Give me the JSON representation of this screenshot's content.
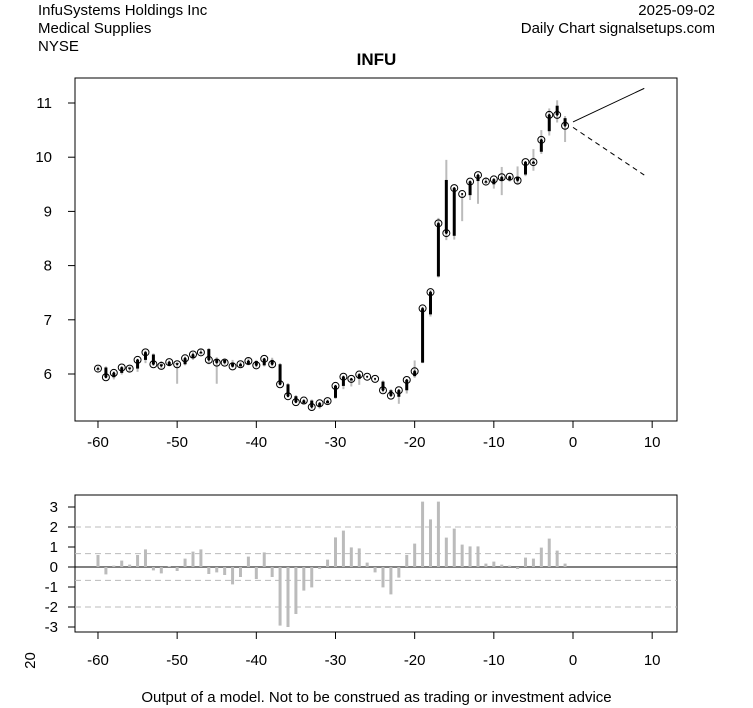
{
  "header": {
    "company": "InfuSystems Holdings Inc",
    "sector": "Medical Supplies",
    "exchange": "NYSE",
    "date": "2025-09-02",
    "source": "Daily Chart signalsetups.com"
  },
  "footer": {
    "disclaimer": "Output of a model. Not to be construed as trading or investment advice",
    "side_label": "20"
  },
  "chart_data": [
    {
      "type": "candlestick",
      "title": "INFU",
      "xlim": [
        -63,
        13
      ],
      "ylim": [
        5.2,
        11.6
      ],
      "xticks": [
        -60,
        -50,
        -40,
        -30,
        -20,
        -10,
        0,
        10
      ],
      "yticks": [
        6,
        7,
        8,
        9,
        10,
        11
      ],
      "columns": [
        "x",
        "open",
        "high",
        "low",
        "close"
      ],
      "candles": [
        [
          -60,
          6.08,
          6.14,
          6.05,
          6.1
        ],
        [
          -59,
          6.12,
          6.14,
          5.92,
          5.94
        ],
        [
          -58,
          5.94,
          6.05,
          5.9,
          6.02
        ],
        [
          -57,
          6.02,
          6.14,
          5.99,
          6.12
        ],
        [
          -56,
          6.12,
          6.14,
          6.03,
          6.1
        ],
        [
          -55,
          6.1,
          6.28,
          6.04,
          6.26
        ],
        [
          -54,
          6.26,
          6.43,
          6.2,
          6.4
        ],
        [
          -53,
          6.36,
          6.38,
          6.15,
          6.18
        ],
        [
          -52,
          6.18,
          6.24,
          6.1,
          6.15
        ],
        [
          -51,
          6.15,
          6.25,
          6.14,
          6.22
        ],
        [
          -50,
          6.2,
          6.22,
          5.82,
          6.18
        ],
        [
          -49,
          6.18,
          6.32,
          6.16,
          6.29
        ],
        [
          -48,
          6.29,
          6.4,
          6.26,
          6.36
        ],
        [
          -47,
          6.38,
          6.47,
          6.36,
          6.4
        ],
        [
          -46,
          6.46,
          6.48,
          6.18,
          6.26
        ],
        [
          -45,
          6.28,
          6.31,
          5.82,
          6.21
        ],
        [
          -44,
          6.26,
          6.29,
          6.17,
          6.21
        ],
        [
          -43,
          6.21,
          6.26,
          6.12,
          6.14
        ],
        [
          -42,
          6.14,
          6.22,
          6.12,
          6.18
        ],
        [
          -41,
          6.18,
          6.3,
          6.16,
          6.24
        ],
        [
          -40,
          6.24,
          6.26,
          6.12,
          6.16
        ],
        [
          -39,
          6.16,
          6.3,
          6.14,
          6.28
        ],
        [
          -38,
          6.26,
          6.3,
          6.14,
          6.18
        ],
        [
          -37,
          6.18,
          6.2,
          5.79,
          5.81
        ],
        [
          -36,
          5.81,
          5.83,
          5.57,
          5.59
        ],
        [
          -35,
          5.59,
          5.61,
          5.46,
          5.48
        ],
        [
          -34,
          5.46,
          5.53,
          5.44,
          5.51
        ],
        [
          -33,
          5.51,
          5.53,
          5.35,
          5.39
        ],
        [
          -32,
          5.39,
          5.48,
          5.36,
          5.46
        ],
        [
          -31,
          5.46,
          5.53,
          5.44,
          5.5
        ],
        [
          -30,
          5.56,
          5.8,
          5.54,
          5.78
        ],
        [
          -29,
          5.78,
          5.97,
          5.72,
          5.95
        ],
        [
          -28,
          5.88,
          5.93,
          5.77,
          5.91
        ],
        [
          -27,
          5.91,
          6.01,
          5.8,
          5.99
        ],
        [
          -26,
          5.95,
          5.97,
          5.93,
          5.95
        ],
        [
          -25,
          5.91,
          5.93,
          5.88,
          5.91
        ],
        [
          -24,
          5.86,
          5.88,
          5.66,
          5.7
        ],
        [
          -23,
          5.7,
          5.72,
          5.58,
          5.6
        ],
        [
          -22,
          5.58,
          5.72,
          5.45,
          5.7
        ],
        [
          -21,
          5.7,
          5.91,
          5.64,
          5.89
        ],
        [
          -20,
          5.96,
          6.25,
          5.93,
          6.05
        ],
        [
          -19,
          6.21,
          7.24,
          6.2,
          7.21
        ],
        [
          -18,
          7.1,
          7.55,
          7.06,
          7.51
        ],
        [
          -17,
          7.8,
          8.88,
          7.78,
          8.78
        ],
        [
          -16,
          9.58,
          9.95,
          8.47,
          8.6
        ],
        [
          -15,
          8.55,
          9.45,
          8.48,
          9.43
        ],
        [
          -14,
          9.32,
          9.34,
          8.82,
          9.32
        ],
        [
          -13,
          9.3,
          9.57,
          9.21,
          9.55
        ],
        [
          -12,
          9.56,
          9.7,
          9.14,
          9.67
        ],
        [
          -11,
          9.53,
          9.63,
          9.5,
          9.55
        ],
        [
          -10,
          9.5,
          9.61,
          9.42,
          9.59
        ],
        [
          -9,
          9.57,
          9.82,
          9.3,
          9.63
        ],
        [
          -8,
          9.58,
          9.66,
          9.55,
          9.64
        ],
        [
          -7,
          9.64,
          9.83,
          9.49,
          9.57
        ],
        [
          -6,
          9.68,
          9.93,
          9.65,
          9.91
        ],
        [
          -5,
          9.88,
          10.15,
          9.75,
          9.91
        ],
        [
          -4,
          10.1,
          10.5,
          10.06,
          10.32
        ],
        [
          -3,
          10.48,
          10.9,
          10.4,
          10.78
        ],
        [
          -2,
          10.95,
          11.05,
          10.64,
          10.78
        ],
        [
          -1,
          10.72,
          10.76,
          10.28,
          10.58
        ]
      ],
      "projection": [
        {
          "name": "upper",
          "style": "solid",
          "x": [
            0,
            9
          ],
          "y": [
            10.65,
            11.27
          ]
        },
        {
          "name": "lower",
          "style": "dashed",
          "x": [
            0,
            9
          ],
          "y": [
            10.55,
            9.67
          ]
        }
      ]
    },
    {
      "type": "bar",
      "xlim": [
        -63,
        13
      ],
      "ylim": [
        -3.3,
        3.6
      ],
      "xticks": [
        -60,
        -50,
        -40,
        -30,
        -20,
        -10,
        0,
        10
      ],
      "yticks": [
        -3,
        -2,
        -1,
        0,
        1,
        2,
        3
      ],
      "reference_lines": [
        2,
        0.67,
        -0.67,
        -2
      ],
      "x": [
        -60,
        -59,
        -58,
        -57,
        -56,
        -55,
        -54,
        -53,
        -52,
        -51,
        -50,
        -49,
        -48,
        -47,
        -46,
        -45,
        -44,
        -43,
        -42,
        -41,
        -40,
        -39,
        -38,
        -37,
        -36,
        -35,
        -34,
        -33,
        -32,
        -31,
        -30,
        -29,
        -28,
        -27,
        -26,
        -25,
        -24,
        -23,
        -22,
        -21,
        -20,
        -19,
        -18,
        -17,
        -16,
        -15,
        -14,
        -13,
        -12,
        -11,
        -10,
        -9,
        -8,
        -7,
        -6,
        -5,
        -4,
        -3,
        -2,
        -1
      ],
      "values": [
        0.6,
        -0.37,
        0.07,
        0.32,
        0.12,
        0.6,
        0.88,
        -0.17,
        -0.32,
        0.02,
        -0.2,
        0.42,
        0.77,
        0.88,
        -0.35,
        -0.27,
        -0.4,
        -0.87,
        -0.5,
        0.52,
        -0.6,
        0.73,
        -0.5,
        -2.93,
        -3.0,
        -2.35,
        -1.18,
        -1.02,
        -0.1,
        0.37,
        1.48,
        1.82,
        0.98,
        0.93,
        0.22,
        -0.27,
        -1.02,
        -1.37,
        -0.53,
        0.6,
        1.17,
        3.27,
        2.38,
        3.27,
        1.47,
        1.92,
        1.12,
        1.03,
        1.03,
        0.17,
        0.27,
        0.12,
        0.07,
        -0.1,
        0.47,
        0.42,
        0.97,
        1.42,
        0.82,
        0.17
      ]
    }
  ]
}
